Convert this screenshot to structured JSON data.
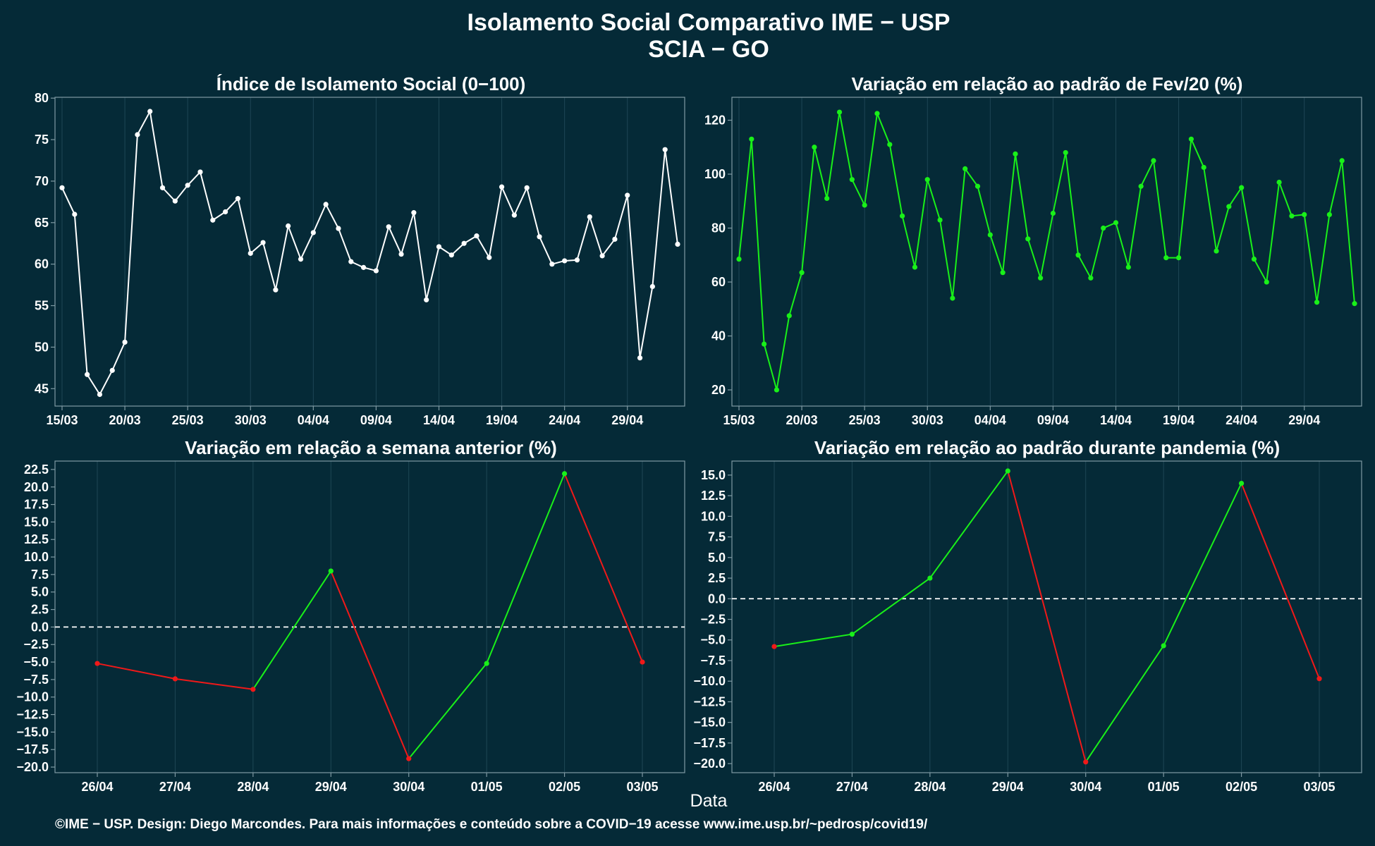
{
  "header": {
    "title_line1": "Isolamento Social Comparativo IME − USP",
    "title_line2": "SCIA − GO"
  },
  "xlabel": "Data",
  "caption": "©IME − USP. Design: Diego Marcondes. Para mais informações e conteúdo sobre a COVID−19 acesse www.ime.usp.br/~pedrosp/covid19/",
  "colors": {
    "background": "#052a37",
    "axis": "#7f9aa3",
    "grid": "#1e4655",
    "white_line": "#ffffff",
    "green": "#19f019",
    "red": "#f01919",
    "zero_line": "#ffffff"
  },
  "chart_data": [
    {
      "type": "line",
      "title": "Índice de Isolamento Social (0−100)",
      "color": "white",
      "x": [
        "15/03",
        "16/03",
        "17/03",
        "18/03",
        "19/03",
        "20/03",
        "21/03",
        "22/03",
        "23/03",
        "24/03",
        "25/03",
        "26/03",
        "27/03",
        "28/03",
        "29/03",
        "30/03",
        "31/03",
        "01/04",
        "02/04",
        "03/04",
        "04/04",
        "05/04",
        "06/04",
        "07/04",
        "08/04",
        "09/04",
        "10/04",
        "11/04",
        "12/04",
        "13/04",
        "14/04",
        "15/04",
        "16/04",
        "17/04",
        "18/04",
        "19/04",
        "20/04",
        "21/04",
        "22/04",
        "23/04",
        "24/04",
        "25/04",
        "26/04",
        "27/04",
        "28/04",
        "29/04",
        "30/04",
        "01/05",
        "02/05",
        "03/05"
      ],
      "values": [
        69.2,
        66.0,
        46.7,
        44.3,
        47.2,
        50.6,
        75.6,
        78.4,
        69.2,
        67.6,
        69.5,
        71.1,
        65.3,
        66.3,
        67.9,
        61.3,
        62.6,
        56.9,
        64.6,
        60.6,
        63.8,
        67.2,
        64.3,
        60.3,
        59.6,
        59.2,
        64.5,
        61.2,
        66.2,
        55.7,
        62.1,
        61.1,
        62.5,
        63.4,
        60.8,
        69.3,
        65.9,
        69.2,
        63.3,
        60.0,
        60.4,
        60.5,
        65.7,
        61.0,
        63.0,
        68.3,
        48.7,
        57.3,
        73.8,
        62.4
      ],
      "xticks": [
        "15/03",
        "20/03",
        "25/03",
        "30/03",
        "04/04",
        "09/04",
        "14/04",
        "19/04",
        "24/04",
        "29/04"
      ],
      "yticks": [
        45,
        50,
        55,
        60,
        65,
        70,
        75,
        80
      ],
      "ylim": [
        42.9,
        80.1
      ]
    },
    {
      "type": "line",
      "title": "Variação em relação ao padrão de Fev/20 (%)",
      "color": "green",
      "x": [
        "15/03",
        "16/03",
        "17/03",
        "18/03",
        "19/03",
        "20/03",
        "21/03",
        "22/03",
        "23/03",
        "24/03",
        "25/03",
        "26/03",
        "27/03",
        "28/03",
        "29/03",
        "30/03",
        "31/03",
        "01/04",
        "02/04",
        "03/04",
        "04/04",
        "05/04",
        "06/04",
        "07/04",
        "08/04",
        "09/04",
        "10/04",
        "11/04",
        "12/04",
        "13/04",
        "14/04",
        "15/04",
        "16/04",
        "17/04",
        "18/04",
        "19/04",
        "20/04",
        "21/04",
        "22/04",
        "23/04",
        "24/04",
        "25/04",
        "26/04",
        "27/04",
        "28/04",
        "29/04",
        "30/04",
        "01/05",
        "02/05",
        "03/05"
      ],
      "values": [
        68.5,
        113.0,
        37.0,
        20.0,
        47.5,
        63.5,
        110.0,
        91.0,
        123.0,
        98.0,
        88.5,
        122.5,
        111.0,
        84.5,
        65.5,
        98.0,
        83.0,
        54.0,
        102.0,
        95.5,
        77.5,
        63.5,
        107.5,
        76.0,
        61.5,
        85.5,
        108.0,
        70.0,
        61.5,
        80.0,
        82.0,
        65.5,
        95.5,
        105.0,
        69.0,
        69.0,
        113.0,
        102.5,
        71.5,
        88.0,
        95.0,
        68.5,
        60.0,
        97.0,
        84.5,
        85.0,
        52.5,
        85.0,
        105.0,
        52.0
      ],
      "xticks": [
        "15/03",
        "20/03",
        "25/03",
        "30/03",
        "04/04",
        "09/04",
        "14/04",
        "19/04",
        "24/04",
        "29/04"
      ],
      "yticks": [
        20,
        40,
        60,
        80,
        100,
        120
      ],
      "ylim": [
        14,
        128.5
      ]
    },
    {
      "type": "line",
      "title": "Variação em relação a semana anterior (%)",
      "color": "segment",
      "x": [
        "26/04",
        "27/04",
        "28/04",
        "29/04",
        "30/04",
        "01/05",
        "02/05",
        "03/05"
      ],
      "values": [
        -5.2,
        -7.4,
        -8.9,
        8.0,
        -18.8,
        -5.2,
        21.9,
        -5.0
      ],
      "xticks": [
        "26/04",
        "27/04",
        "28/04",
        "29/04",
        "30/04",
        "01/05",
        "02/05",
        "03/05"
      ],
      "yticks": [
        -20.0,
        -17.5,
        -15.0,
        -12.5,
        -10.0,
        -7.5,
        -5.0,
        -2.5,
        0.0,
        2.5,
        5.0,
        7.5,
        10.0,
        12.5,
        15.0,
        17.5,
        20.0,
        22.5
      ],
      "ylabels": [
        "−20.0",
        "−17.5",
        "−15.0",
        "−12.5",
        "−10.0",
        "−7.5",
        "−5.0",
        "−2.5",
        "0.0",
        "2.5",
        "5.0",
        "7.5",
        "10.0",
        "12.5",
        "15.0",
        "17.5",
        "20.0",
        "22.5"
      ],
      "ylim": [
        -20.8,
        23.7
      ]
    },
    {
      "type": "line",
      "title": "Variação em relação ao padrão durante pandemia (%)",
      "color": "segment",
      "x": [
        "26/04",
        "27/04",
        "28/04",
        "29/04",
        "30/04",
        "01/05",
        "02/05",
        "03/05"
      ],
      "values": [
        -5.8,
        -4.3,
        2.5,
        15.5,
        -19.8,
        -5.7,
        14.0,
        -9.7
      ],
      "xticks": [
        "26/04",
        "27/04",
        "28/04",
        "29/04",
        "30/04",
        "01/05",
        "02/05",
        "03/05"
      ],
      "yticks": [
        -20.0,
        -17.5,
        -15.0,
        -12.5,
        -10.0,
        -7.5,
        -5.0,
        -2.5,
        0.0,
        2.5,
        5.0,
        7.5,
        10.0,
        12.5,
        15.0
      ],
      "ylabels": [
        "−20.0",
        "−17.5",
        "−15.0",
        "−12.5",
        "−10.0",
        "−7.5",
        "−5.0",
        "−2.5",
        "0.0",
        "2.5",
        "5.0",
        "7.5",
        "10.0",
        "12.5",
        "15.0"
      ],
      "ylim": [
        -21.1,
        16.7
      ]
    }
  ]
}
